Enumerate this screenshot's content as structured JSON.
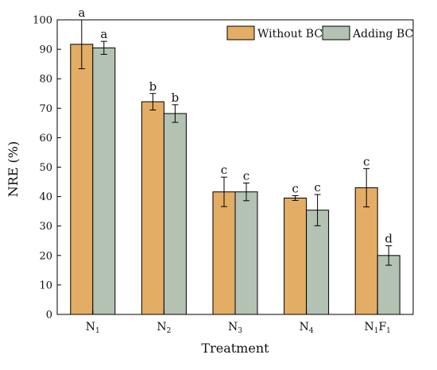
{
  "chart_data": {
    "type": "bar",
    "xlabel": "Treatment",
    "ylabel": "NRE (%)",
    "ylim": [
      0,
      100
    ],
    "yticks": [
      0,
      10,
      20,
      30,
      40,
      50,
      60,
      70,
      80,
      90,
      100
    ],
    "categories": [
      {
        "base": "N",
        "sub": "1",
        "tail": "",
        "sub2": ""
      },
      {
        "base": "N",
        "sub": "2",
        "tail": "",
        "sub2": ""
      },
      {
        "base": "N",
        "sub": "3",
        "tail": "",
        "sub2": ""
      },
      {
        "base": "N",
        "sub": "4",
        "tail": "",
        "sub2": ""
      },
      {
        "base": "N",
        "sub": "1",
        "tail": "F",
        "sub2": "1"
      }
    ],
    "series": [
      {
        "name": "Without BC",
        "color": "#E3AD65",
        "values": [
          91.7,
          72.2,
          41.6,
          39.5,
          43.0
        ],
        "errors": [
          8.3,
          2.8,
          5.0,
          0.8,
          6.5
        ],
        "labels": [
          "a",
          "b",
          "c",
          "c",
          "c"
        ]
      },
      {
        "name": "Adding BC",
        "color": "#B3C2B3",
        "values": [
          90.5,
          68.2,
          41.6,
          35.4,
          20.0
        ],
        "errors": [
          2.2,
          3.0,
          3.0,
          5.3,
          3.3
        ],
        "labels": [
          "a",
          "b",
          "c",
          "c",
          "d"
        ]
      }
    ],
    "legend_position": "top-right",
    "grid": false
  }
}
